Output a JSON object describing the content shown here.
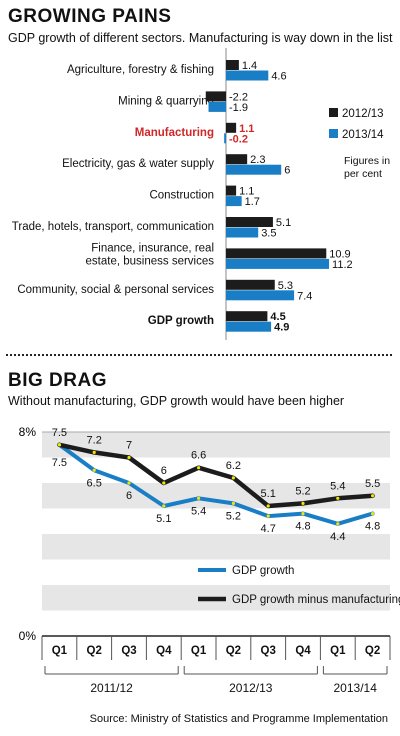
{
  "colors": {
    "dark": "#1c1c1c",
    "blue": "#1a7ec6",
    "red": "#d02828",
    "band": "#e6e6e6"
  },
  "section1": {
    "title": "GROWING PAINS",
    "subtitle": "GDP growth of different sectors. Manufacturing is way down in the list"
  },
  "section2": {
    "title": "BIG DRAG",
    "subtitle": "Without manufacturing, GDP growth would have been higher"
  },
  "source": "Source: Ministry of Statistics and Programme Implementation",
  "chart_data": [
    {
      "type": "bar",
      "orientation": "horizontal",
      "title": "GROWING PAINS",
      "subtitle": "GDP growth of different sectors. Manufacturing is way down in the list",
      "note": "Figures in per cent",
      "categories": [
        [
          "Agriculture, forestry & fishing"
        ],
        [
          "Mining & quarrying"
        ],
        [
          "Manufacturing"
        ],
        [
          "Electricity, gas & water supply"
        ],
        [
          "Construction"
        ],
        [
          "Trade, hotels, transport, communication"
        ],
        [
          "Finance, insurance, real",
          "estate, business services"
        ],
        [
          "Community, social & personal services"
        ],
        [
          "GDP growth"
        ]
      ],
      "highlight": {
        "Manufacturing": "red",
        "GDP growth": "bold"
      },
      "series": [
        {
          "name": "2012/13",
          "color": "#1c1c1c",
          "values": [
            1.4,
            -2.2,
            1.1,
            2.3,
            1.1,
            5.1,
            10.9,
            5.3,
            4.5
          ]
        },
        {
          "name": "2013/14",
          "color": "#1a7ec6",
          "values": [
            4.6,
            -1.9,
            -0.2,
            6,
            1.7,
            3.5,
            11.2,
            7.4,
            4.9
          ]
        }
      ],
      "value_labels": [
        [
          "1.4",
          "-2.2",
          "1.1",
          "2.3",
          "1.1",
          "5.1",
          "10.9",
          "5.3",
          "4.5"
        ],
        [
          "4.6",
          "-1.9",
          "-0.2",
          "6",
          "1.7",
          "3.5",
          "11.2",
          "7.4",
          "4.9"
        ]
      ],
      "legend_position": "right"
    },
    {
      "type": "line",
      "title": "BIG DRAG",
      "subtitle": "Without manufacturing, GDP growth would have been higher",
      "x": [
        "Q1",
        "Q2",
        "Q3",
        "Q4",
        "Q1",
        "Q2",
        "Q3",
        "Q4",
        "Q1",
        "Q2"
      ],
      "groups": [
        {
          "label": "2011/12",
          "count": 4
        },
        {
          "label": "2012/13",
          "count": 4
        },
        {
          "label": "2013/14",
          "count": 2
        }
      ],
      "y_tick_labels": [
        "8%",
        "0%"
      ],
      "ylim": [
        0,
        8
      ],
      "series": [
        {
          "name": "GDP growth",
          "color": "#1a7ec6",
          "values": [
            7.5,
            6.5,
            6,
            5.1,
            5.4,
            5.2,
            4.7,
            4.8,
            4.4,
            4.8
          ]
        },
        {
          "name": "GDP growth minus manufacturing",
          "color": "#1c1c1c",
          "values": [
            7.5,
            7.2,
            7,
            6,
            6.6,
            6.2,
            5.1,
            5.2,
            5.4,
            5.5
          ]
        }
      ],
      "value_labels": {
        "GDP growth": [
          "7.5",
          "6.5",
          "6",
          "5.1",
          "5.4",
          "5.2",
          "4.7",
          "4.8",
          "4.4",
          "4.8"
        ],
        "GDP growth minus manufacturing": [
          "7.5",
          "7.2",
          "7",
          "6",
          "6.6",
          "6.2",
          "5.1",
          "5.2",
          "5.4",
          "5.5"
        ]
      },
      "grid": "alternating bands",
      "legend_position": "bottom-right"
    }
  ]
}
